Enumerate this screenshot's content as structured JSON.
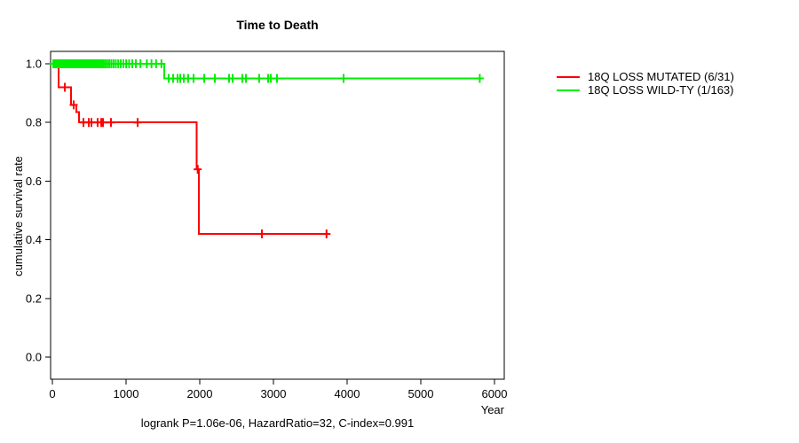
{
  "title": "Time to Death",
  "chart_data": {
    "type": "line",
    "subtype": "kaplan-meier-step-curves",
    "title": "Time to Death",
    "xlabel": "Year",
    "ylabel": "cumulative survival rate",
    "xlim": [
      0,
      6000
    ],
    "ylim": [
      0.0,
      1.0
    ],
    "x_ticks": [
      0,
      1000,
      2000,
      3000,
      4000,
      5000,
      6000
    ],
    "y_tick_labels": [
      "0.0",
      "0.2",
      "0.4",
      "0.6",
      "0.8",
      "1.0"
    ],
    "y_tick_values": [
      0.0,
      0.2,
      0.4,
      0.6,
      0.8,
      1.0
    ],
    "grid": "off",
    "legend_position": "right-outside",
    "annotation": "logrank P=1.06e-06, HazardRatio=32, C-index=0.991",
    "series": [
      {
        "name": "18Q LOSS MUTATED (6/31)",
        "color": "#ff0000",
        "steps": [
          [
            0,
            1.0
          ],
          [
            84,
            0.92
          ],
          [
            253,
            0.86
          ],
          [
            325,
            0.835
          ],
          [
            361,
            0.8
          ],
          [
            1960,
            0.64
          ],
          [
            1985,
            0.42
          ]
        ],
        "end_time": 3720,
        "censor_times": [
          169,
          289,
          422,
          494,
          530,
          614,
          663,
          687,
          795,
          1157,
          1972,
          2843,
          3720
        ]
      },
      {
        "name": "18Q LOSS WILD-TY (1/163)",
        "color": "#00ee00",
        "steps": [
          [
            0,
            1.0
          ],
          [
            1520,
            0.95
          ]
        ],
        "end_time": 5800,
        "censor_times": [
          12,
          25,
          38,
          50,
          62,
          74,
          86,
          98,
          110,
          122,
          134,
          146,
          158,
          170,
          182,
          195,
          208,
          221,
          234,
          247,
          260,
          274,
          288,
          302,
          316,
          330,
          345,
          360,
          375,
          390,
          406,
          422,
          438,
          455,
          472,
          490,
          508,
          526,
          545,
          564,
          584,
          604,
          625,
          647,
          670,
          694,
          719,
          745,
          772,
          800,
          830,
          861,
          894,
          928,
          964,
          1002,
          1042,
          1084,
          1133,
          1195,
          1282,
          1345,
          1407,
          1480,
          1578,
          1639,
          1699,
          1735,
          1783,
          1843,
          1916,
          2060,
          2205,
          2398,
          2446,
          2578,
          2627,
          2807,
          2928,
          2964,
          3048,
          3952,
          5800
        ]
      }
    ]
  }
}
